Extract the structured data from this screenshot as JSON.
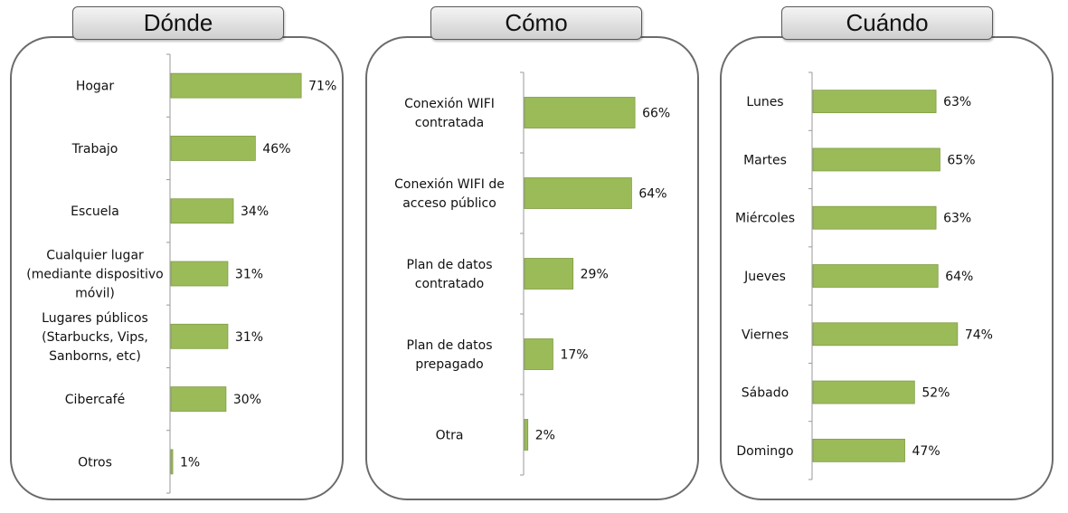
{
  "colors": {
    "bar": "#9BBB59",
    "bar_border": "#7f9d44",
    "axis": "#999999"
  },
  "chart_data": [
    {
      "type": "bar",
      "orientation": "horizontal",
      "title": "Dónde",
      "categories": [
        [
          "Hogar"
        ],
        [
          "Trabajo"
        ],
        [
          "Escuela"
        ],
        [
          "Cualquier lugar",
          "(mediante dispositivo",
          "móvil)"
        ],
        [
          "Lugares públicos",
          "(Starbucks, Vips,",
          "Sanborns, etc)"
        ],
        [
          "Cibercafé"
        ],
        [
          "Otros"
        ]
      ],
      "values": [
        71,
        46,
        34,
        31,
        31,
        30,
        1
      ],
      "value_labels": [
        "71%",
        "46%",
        "34%",
        "31%",
        "31%",
        "30%",
        "1%"
      ],
      "unit": "%"
    },
    {
      "type": "bar",
      "orientation": "horizontal",
      "title": "Cómo",
      "categories": [
        [
          "Conexión WIFI",
          "contratada"
        ],
        [
          "Conexión WIFI de",
          "acceso público"
        ],
        [
          "Plan de datos",
          "contratado"
        ],
        [
          "Plan de datos",
          "prepagado"
        ],
        [
          "Otra"
        ]
      ],
      "values": [
        66,
        64,
        29,
        17,
        2
      ],
      "value_labels": [
        "66%",
        "64%",
        "29%",
        "17%",
        "2%"
      ],
      "unit": "%"
    },
    {
      "type": "bar",
      "orientation": "horizontal",
      "title": "Cuándo",
      "categories": [
        [
          "Lunes"
        ],
        [
          "Martes"
        ],
        [
          "Miércoles"
        ],
        [
          "Jueves"
        ],
        [
          "Viernes"
        ],
        [
          "Sábado"
        ],
        [
          "Domingo"
        ]
      ],
      "values": [
        63,
        65,
        63,
        64,
        74,
        52,
        47
      ],
      "value_labels": [
        "63%",
        "65%",
        "63%",
        "64%",
        "74%",
        "52%",
        "47%"
      ],
      "unit": "%"
    }
  ]
}
